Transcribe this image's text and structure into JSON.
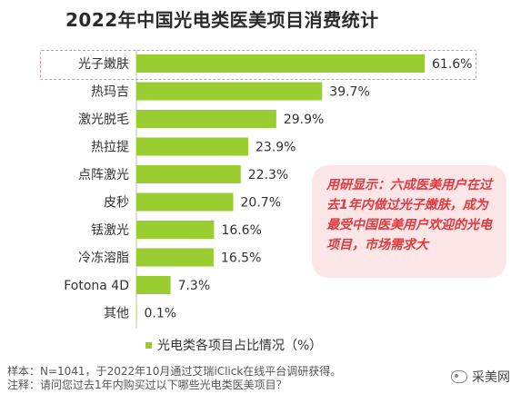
{
  "header": {
    "title": "2022年中国光电类医美项目消费统计"
  },
  "chart_data": {
    "type": "bar",
    "orientation": "horizontal",
    "title": "2022年中国光电类医美项目消费统计",
    "categories": [
      "光子嫩肤",
      "热玛吉",
      "激光脱毛",
      "热拉提",
      "点阵激光",
      "皮秒",
      "铥激光",
      "冷冻溶脂",
      "Fotona 4D",
      "其他"
    ],
    "values": [
      61.6,
      39.7,
      29.9,
      23.9,
      22.3,
      20.7,
      16.6,
      16.5,
      7.3,
      0.1
    ],
    "value_labels": [
      "61.6%",
      "39.7%",
      "29.9%",
      "23.9%",
      "22.3%",
      "20.7%",
      "16.6%",
      "16.5%",
      "7.3%",
      "0.1%"
    ],
    "series": [
      {
        "name": "光电类各项目占比情况（%）"
      }
    ],
    "xlim": [
      0,
      61.6
    ],
    "legend_position": "bottom",
    "bar_color": "#9ACD32",
    "highlighted_category": "光子嫩肤"
  },
  "callout": {
    "text": "用研显示：六成医美用户在过去1年内做过光子嫩肤，成为最受中国医美用户欢迎的光电项目，市场需求大"
  },
  "legend": {
    "label": "光电类各项目占比情况（%）"
  },
  "footnotes": {
    "sample": "样本：N=1041，于2022年10月通过艾瑞iClick在线平台调研获得。",
    "note": "注释：请问您过去1年内购买过以下哪些光电类医美项目？"
  },
  "watermark": {
    "text": "采美网",
    "icon": "wechat-icon"
  }
}
